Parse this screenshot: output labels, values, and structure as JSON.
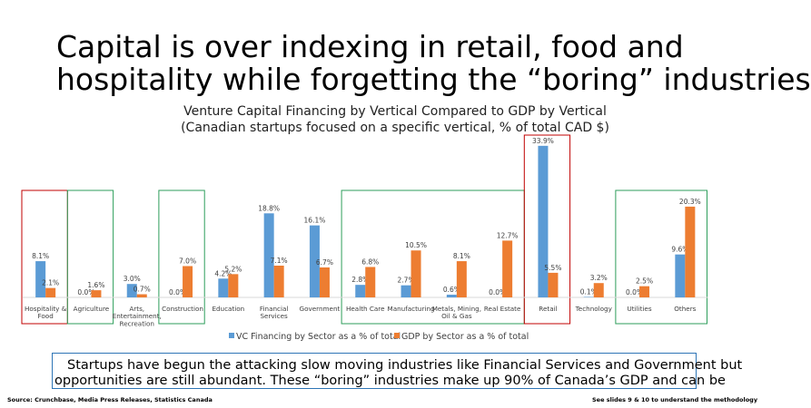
{
  "headline": {
    "line1": "Capital is over indexing in retail, food and",
    "line2": "hospitality while forgetting the “boring” industries"
  },
  "chart_data": {
    "type": "bar",
    "title": "Venture Capital Financing by Vertical Compared to GDP by Vertical",
    "subtitle": "(Canadian startups focused on a specific vertical, % of total CAD $)",
    "categories": [
      "Hospitality & Food",
      "Agriculture",
      "Arts, Entertainment, Recreation",
      "Construction",
      "Education",
      "Financial Services",
      "Government",
      "Health Care",
      "Manufacturing",
      "Metals, Mining, Oil & Gas",
      "Real Estate",
      "Retail",
      "Technology",
      "Utilities",
      "Others"
    ],
    "category_label_lines": [
      [
        "Hospitality &",
        "Food"
      ],
      [
        "Agriculture"
      ],
      [
        "Arts,",
        "Entertainment,",
        "Recreation"
      ],
      [
        "Construction"
      ],
      [
        "Education"
      ],
      [
        "Financial",
        "Services"
      ],
      [
        "Government"
      ],
      [
        "Health Care"
      ],
      [
        "Manufacturing"
      ],
      [
        "Metals, Mining,",
        "Oil & Gas"
      ],
      [
        "Real Estate"
      ],
      [
        "Retail"
      ],
      [
        "Technology"
      ],
      [
        "Utilities"
      ],
      [
        "Others"
      ]
    ],
    "series": [
      {
        "name": "VC Financing by Sector as a % of total",
        "color": "#5b9bd5",
        "values": [
          8.1,
          0.0,
          3.0,
          0.0,
          4.2,
          18.8,
          16.1,
          2.8,
          2.7,
          0.6,
          0.0,
          33.9,
          0.1,
          0.0,
          9.6
        ]
      },
      {
        "name": "GDP by Sector as a % of total",
        "color": "#ed7d31",
        "values": [
          2.1,
          1.6,
          0.7,
          7.0,
          5.2,
          7.1,
          6.7,
          6.8,
          10.5,
          8.1,
          12.7,
          5.5,
          3.2,
          2.5,
          20.3
        ]
      }
    ],
    "data_labels": [
      [
        "8.1%",
        "0.0%",
        "3.0%",
        "0.0%",
        "4.2%",
        "18.8%",
        "16.1%",
        "2.8%",
        "2.7%",
        "0.6%",
        "0.0%",
        "33.9%",
        "0.1%",
        "0.0%",
        "9.6%"
      ],
      [
        "2.1%",
        "1.6%",
        "0.7%",
        "7.0%",
        "5.2%",
        "7.1%",
        "6.7%",
        "6.8%",
        "10.5%",
        "8.1%",
        "12.7%",
        "5.5%",
        "3.2%",
        "2.5%",
        "20.3%"
      ]
    ],
    "ylim": [
      0,
      35
    ],
    "grid": false,
    "legend_position": "bottom",
    "highlight_groups": [
      {
        "color": "#c00000",
        "from": 0,
        "to": 0
      },
      {
        "color": "#2e9e5b",
        "from": 1,
        "to": 1
      },
      {
        "color": "#2e9e5b",
        "from": 3,
        "to": 3
      },
      {
        "color": "#2e9e5b",
        "from": 7,
        "to": 10
      },
      {
        "color": "#c00000",
        "from": 11,
        "to": 11
      },
      {
        "color": "#2e9e5b",
        "from": 13,
        "to": 14
      }
    ]
  },
  "callout": {
    "line1": "Startups have begun the attacking slow moving industries like Financial Services and Government but",
    "line2": "opportunities are still abundant. These “boring” industries make up 90% of Canada’s GDP and can be"
  },
  "footer": {
    "source": "Source: Crunchbase, Media Press Releases, Statistics Canada",
    "note": "See slides 9 & 10 to understand the methodology"
  }
}
